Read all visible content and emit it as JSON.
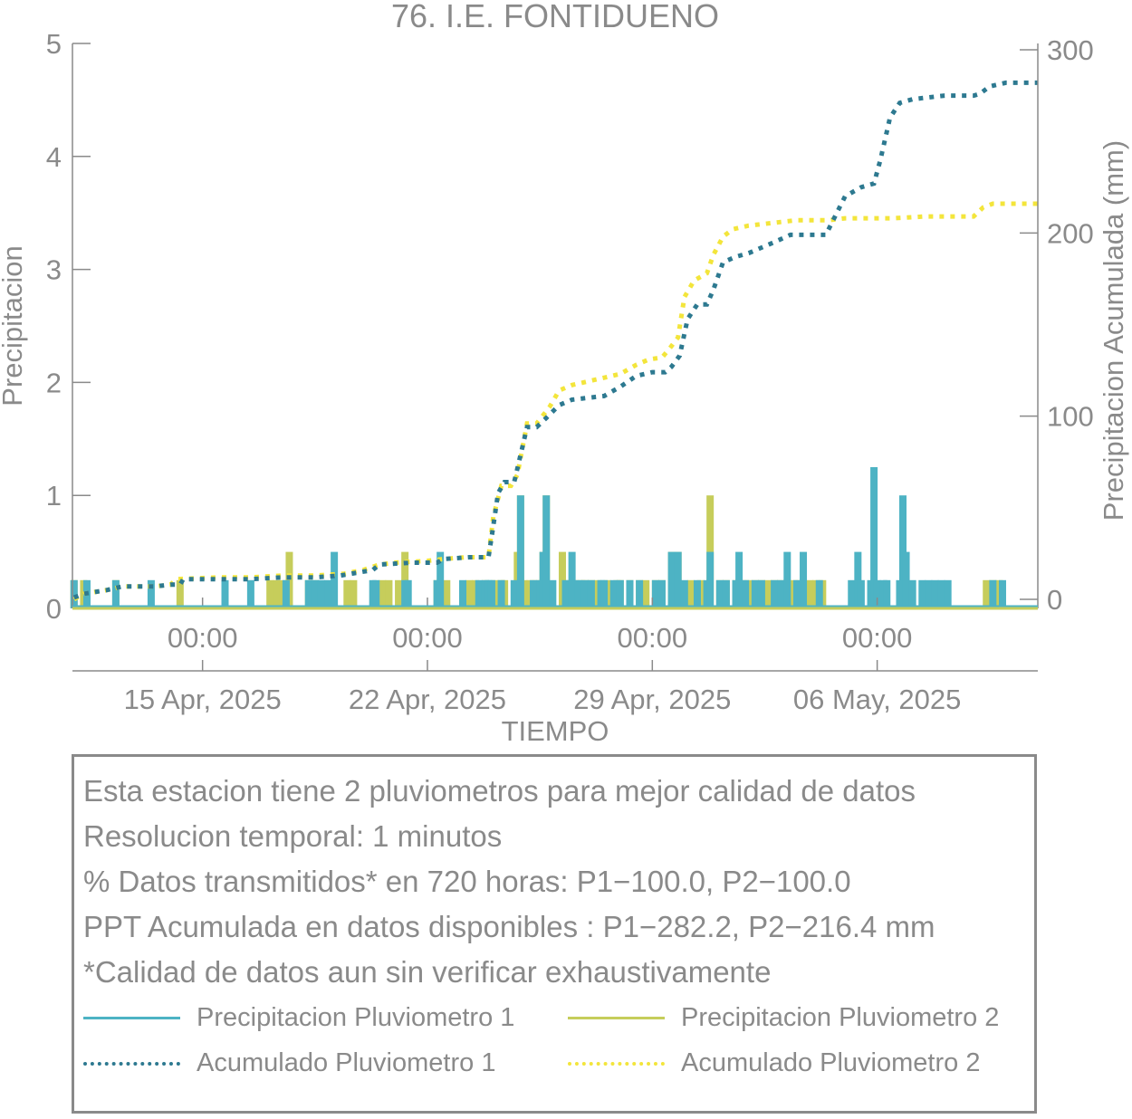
{
  "chart_data": {
    "type": "bar+line",
    "title": "76. I.E. FONTIDUENO",
    "xlabel": "TIEMPO",
    "ylabel_left": "Precipitacion",
    "ylabel_right": "Precipitacion Acumulada (mm)",
    "ylim_left": [
      0,
      5
    ],
    "ylim_right": [
      0,
      300
    ],
    "yticks_left": [
      "0",
      "1",
      "2",
      "3",
      "4",
      "5"
    ],
    "yticks_right": [
      "0",
      "100",
      "200",
      "300"
    ],
    "xlim_days": [
      9.95,
      40.0
    ],
    "x_time_ticks": [
      {
        "day": 14,
        "label": "00:00"
      },
      {
        "day": 21,
        "label": "00:00"
      },
      {
        "day": 28,
        "label": "00:00"
      },
      {
        "day": 35,
        "label": "00:00"
      }
    ],
    "x_date_ticks": [
      {
        "day": 14,
        "label": "15 Apr, 2025"
      },
      {
        "day": 21,
        "label": "22 Apr, 2025"
      },
      {
        "day": 28,
        "label": "29 Apr, 2025"
      },
      {
        "day": 35,
        "label": "06 May, 2025"
      }
    ],
    "series": [
      {
        "name": "Precipitacion Pluviometro 1",
        "kind": "bar",
        "axis": "left",
        "color": "#4db3c4",
        "points": [
          [
            10.0,
            0.25
          ],
          [
            10.4,
            0.25
          ],
          [
            11.3,
            0.25
          ],
          [
            12.4,
            0.25
          ],
          [
            14.7,
            0.25
          ],
          [
            15.5,
            0.25
          ],
          [
            16.6,
            0.25
          ],
          [
            17.3,
            0.25
          ],
          [
            17.5,
            0.25
          ],
          [
            17.7,
            0.25
          ],
          [
            17.9,
            0.25
          ],
          [
            18.1,
            0.5
          ],
          [
            19.3,
            0.25
          ],
          [
            19.4,
            0.25
          ],
          [
            20.3,
            0.25
          ],
          [
            20.4,
            0.25
          ],
          [
            21.3,
            0.25
          ],
          [
            21.4,
            0.5
          ],
          [
            22.1,
            0.25
          ],
          [
            22.6,
            0.25
          ],
          [
            22.8,
            0.25
          ],
          [
            22.9,
            0.25
          ],
          [
            23.0,
            0.25
          ],
          [
            23.3,
            0.25
          ],
          [
            23.7,
            0.25
          ],
          [
            23.9,
            1.0
          ],
          [
            24.3,
            0.25
          ],
          [
            24.5,
            0.25
          ],
          [
            24.6,
            0.5
          ],
          [
            24.7,
            1.0
          ],
          [
            24.9,
            0.25
          ],
          [
            25.3,
            0.25
          ],
          [
            25.5,
            0.5
          ],
          [
            25.7,
            0.25
          ],
          [
            25.9,
            0.25
          ],
          [
            26.1,
            0.25
          ],
          [
            26.4,
            0.25
          ],
          [
            26.5,
            0.25
          ],
          [
            26.8,
            0.25
          ],
          [
            27.0,
            0.25
          ],
          [
            27.3,
            0.25
          ],
          [
            27.6,
            0.25
          ],
          [
            28.1,
            0.25
          ],
          [
            28.3,
            0.25
          ],
          [
            28.6,
            0.5
          ],
          [
            28.8,
            0.5
          ],
          [
            29.0,
            0.25
          ],
          [
            29.4,
            0.25
          ],
          [
            29.7,
            0.25
          ],
          [
            29.8,
            0.5
          ],
          [
            30.1,
            0.25
          ],
          [
            30.3,
            0.25
          ],
          [
            30.6,
            0.25
          ],
          [
            30.7,
            0.5
          ],
          [
            30.9,
            0.25
          ],
          [
            31.2,
            0.25
          ],
          [
            31.4,
            0.25
          ],
          [
            31.8,
            0.25
          ],
          [
            32.0,
            0.25
          ],
          [
            32.2,
            0.5
          ],
          [
            32.5,
            0.25
          ],
          [
            32.7,
            0.5
          ],
          [
            33.2,
            0.25
          ],
          [
            34.2,
            0.25
          ],
          [
            34.4,
            0.5
          ],
          [
            34.5,
            0.25
          ],
          [
            34.8,
            0.25
          ],
          [
            34.9,
            1.25
          ],
          [
            35.0,
            0.25
          ],
          [
            35.2,
            0.25
          ],
          [
            35.3,
            0.25
          ],
          [
            35.7,
            0.25
          ],
          [
            35.8,
            1.0
          ],
          [
            35.9,
            0.5
          ],
          [
            36.1,
            0.25
          ],
          [
            36.4,
            0.25
          ],
          [
            36.6,
            0.25
          ],
          [
            36.8,
            0.25
          ],
          [
            37.0,
            0.25
          ],
          [
            37.2,
            0.25
          ],
          [
            38.6,
            0.25
          ],
          [
            38.9,
            0.25
          ]
        ]
      },
      {
        "name": "Precipitacion Pluviometro 2",
        "kind": "bar",
        "axis": "left",
        "color": "#c6cd5b",
        "points": [
          [
            10.0,
            0.25
          ],
          [
            10.3,
            0.25
          ],
          [
            11.3,
            0.25
          ],
          [
            13.3,
            0.25
          ],
          [
            16.1,
            0.25
          ],
          [
            16.3,
            0.25
          ],
          [
            16.5,
            0.25
          ],
          [
            16.7,
            0.5
          ],
          [
            17.3,
            0.25
          ],
          [
            17.5,
            0.25
          ],
          [
            18.5,
            0.25
          ],
          [
            18.7,
            0.25
          ],
          [
            19.6,
            0.25
          ],
          [
            19.8,
            0.25
          ],
          [
            20.1,
            0.25
          ],
          [
            20.3,
            0.5
          ],
          [
            21.3,
            0.25
          ],
          [
            21.6,
            0.25
          ],
          [
            22.3,
            0.25
          ],
          [
            22.5,
            0.25
          ],
          [
            22.8,
            0.25
          ],
          [
            23.1,
            0.25
          ],
          [
            23.3,
            0.25
          ],
          [
            23.4,
            0.25
          ],
          [
            23.8,
            0.5
          ],
          [
            23.9,
            1.0
          ],
          [
            24.0,
            0.25
          ],
          [
            24.2,
            0.25
          ],
          [
            24.4,
            0.25
          ],
          [
            24.6,
            0.5
          ],
          [
            24.7,
            1.0
          ],
          [
            25.2,
            0.5
          ],
          [
            25.4,
            0.25
          ],
          [
            25.6,
            0.25
          ],
          [
            25.8,
            0.25
          ],
          [
            25.9,
            0.25
          ],
          [
            26.1,
            0.25
          ],
          [
            26.3,
            0.25
          ],
          [
            26.6,
            0.25
          ],
          [
            26.9,
            0.25
          ],
          [
            27.0,
            0.25
          ],
          [
            27.3,
            0.25
          ],
          [
            27.6,
            0.25
          ],
          [
            27.8,
            0.25
          ],
          [
            28.1,
            0.25
          ],
          [
            28.3,
            0.25
          ],
          [
            28.6,
            0.5
          ],
          [
            28.7,
            0.25
          ],
          [
            28.8,
            0.5
          ],
          [
            29.2,
            0.25
          ],
          [
            29.5,
            0.25
          ],
          [
            29.8,
            1.0
          ],
          [
            30.1,
            0.25
          ],
          [
            30.3,
            0.25
          ],
          [
            30.6,
            0.25
          ],
          [
            30.8,
            0.25
          ],
          [
            31.0,
            0.25
          ],
          [
            31.2,
            0.25
          ],
          [
            31.4,
            0.25
          ],
          [
            31.6,
            0.25
          ],
          [
            31.8,
            0.25
          ],
          [
            32.0,
            0.25
          ],
          [
            32.2,
            0.25
          ],
          [
            32.4,
            0.25
          ],
          [
            32.6,
            0.25
          ],
          [
            32.9,
            0.25
          ],
          [
            33.1,
            0.25
          ],
          [
            33.3,
            0.25
          ],
          [
            38.4,
            0.25
          ],
          [
            38.6,
            0.25
          ],
          [
            38.8,
            0.25
          ]
        ]
      },
      {
        "name": "Acumulado Pluviometro 1",
        "kind": "dotted-line",
        "axis": "right",
        "color": "#2d7990",
        "points": [
          [
            10.0,
            1
          ],
          [
            10.3,
            3
          ],
          [
            11.0,
            5
          ],
          [
            11.5,
            7
          ],
          [
            12.5,
            7
          ],
          [
            13.0,
            8
          ],
          [
            13.3,
            8
          ],
          [
            13.4,
            11
          ],
          [
            14.5,
            11
          ],
          [
            15.5,
            11
          ],
          [
            16.5,
            12
          ],
          [
            17.5,
            12
          ],
          [
            18.3,
            13
          ],
          [
            19.3,
            16
          ],
          [
            19.5,
            19
          ],
          [
            20.5,
            20
          ],
          [
            21.3,
            20
          ],
          [
            21.5,
            22
          ],
          [
            22.3,
            23
          ],
          [
            22.9,
            23
          ],
          [
            23.05,
            40
          ],
          [
            23.2,
            58
          ],
          [
            23.4,
            64
          ],
          [
            23.7,
            64
          ],
          [
            24.1,
            94
          ],
          [
            24.4,
            94
          ],
          [
            24.7,
            99
          ],
          [
            25.1,
            106
          ],
          [
            25.5,
            109
          ],
          [
            26.0,
            110
          ],
          [
            26.5,
            111
          ],
          [
            27.0,
            116
          ],
          [
            27.5,
            122
          ],
          [
            28.0,
            124
          ],
          [
            28.4,
            124
          ],
          [
            28.6,
            127
          ],
          [
            28.85,
            133
          ],
          [
            29.1,
            153
          ],
          [
            29.4,
            161
          ],
          [
            29.7,
            161
          ],
          [
            29.9,
            169
          ],
          [
            30.2,
            184
          ],
          [
            30.6,
            187
          ],
          [
            31.0,
            189
          ],
          [
            31.4,
            192
          ],
          [
            31.8,
            195
          ],
          [
            32.3,
            199
          ],
          [
            33.0,
            199
          ],
          [
            33.4,
            199
          ],
          [
            33.6,
            206
          ],
          [
            34.0,
            220
          ],
          [
            34.5,
            225
          ],
          [
            34.9,
            227
          ],
          [
            35.1,
            240
          ],
          [
            35.4,
            263
          ],
          [
            35.7,
            271
          ],
          [
            36.1,
            273
          ],
          [
            36.6,
            274
          ],
          [
            37.1,
            275
          ],
          [
            37.6,
            275
          ],
          [
            38.0,
            275
          ],
          [
            38.2,
            276
          ],
          [
            38.5,
            280
          ],
          [
            39.0,
            282
          ],
          [
            39.5,
            282
          ],
          [
            40.0,
            282
          ]
        ]
      },
      {
        "name": "Acumulado Pluviometro 2",
        "kind": "dotted-line",
        "axis": "right",
        "color": "#f3e53b",
        "points": [
          [
            10.0,
            0
          ],
          [
            10.3,
            3
          ],
          [
            11.0,
            5
          ],
          [
            11.5,
            7
          ],
          [
            12.5,
            7
          ],
          [
            13.0,
            8
          ],
          [
            13.2,
            11
          ],
          [
            14.5,
            12
          ],
          [
            15.5,
            12
          ],
          [
            16.5,
            13
          ],
          [
            17.5,
            13
          ],
          [
            18.4,
            14
          ],
          [
            19.0,
            16
          ],
          [
            19.5,
            19
          ],
          [
            20.0,
            20
          ],
          [
            21.0,
            21
          ],
          [
            21.5,
            22
          ],
          [
            22.2,
            23
          ],
          [
            22.9,
            23
          ],
          [
            23.05,
            45
          ],
          [
            23.3,
            62
          ],
          [
            23.6,
            62
          ],
          [
            23.8,
            68
          ],
          [
            24.1,
            96
          ],
          [
            24.4,
            96
          ],
          [
            24.8,
            105
          ],
          [
            25.1,
            114
          ],
          [
            25.5,
            117
          ],
          [
            26.0,
            119
          ],
          [
            26.5,
            121
          ],
          [
            27.0,
            123
          ],
          [
            27.5,
            128
          ],
          [
            27.9,
            131
          ],
          [
            28.3,
            132
          ],
          [
            28.5,
            136
          ],
          [
            28.8,
            143
          ],
          [
            29.0,
            165
          ],
          [
            29.3,
            174
          ],
          [
            29.7,
            178
          ],
          [
            29.9,
            188
          ],
          [
            30.2,
            198
          ],
          [
            30.5,
            202
          ],
          [
            31.0,
            204
          ],
          [
            31.5,
            205
          ],
          [
            32.0,
            206
          ],
          [
            32.5,
            207
          ],
          [
            33.0,
            207
          ],
          [
            33.5,
            207
          ],
          [
            34.0,
            208
          ],
          [
            34.5,
            208
          ],
          [
            35.5,
            208
          ],
          [
            36.5,
            209
          ],
          [
            37.5,
            209
          ],
          [
            38.0,
            209
          ],
          [
            38.3,
            214
          ],
          [
            38.6,
            216
          ],
          [
            39.0,
            216
          ],
          [
            39.5,
            216
          ],
          [
            40.0,
            216
          ]
        ]
      }
    ]
  },
  "notes": {
    "line1": "Esta estacion tiene 2 pluviometros para mejor calidad de datos",
    "line2": "Resolucion temporal: 1 minutos",
    "line3": "% Datos transmitidos* en 720 horas: P1−100.0, P2−100.0",
    "line4": "PPT Acumulada en datos disponibles : P1−282.2, P2−216.4 mm",
    "line5": "*Calidad de datos aun sin verificar exhaustivamente"
  },
  "legend": {
    "item1": "Precipitacion Pluviometro 1",
    "item2": "Precipitacion Pluviometro 2",
    "item3": "Acumulado Pluviometro 1",
    "item4": "Acumulado Pluviometro 2"
  }
}
